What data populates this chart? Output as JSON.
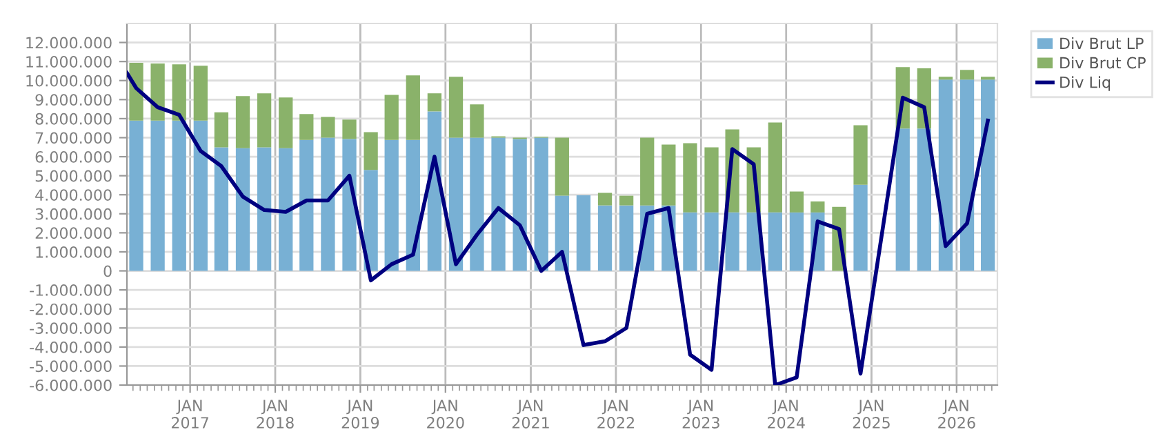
{
  "chart_data": {
    "type": "bar",
    "stacked": true,
    "grid": true,
    "legend": "top right",
    "x": [
      "2016-05-15",
      "2016-08-15",
      "2016-11-15",
      "2017-02-15",
      "2017-05-15",
      "2017-08-15",
      "2017-11-15",
      "2018-02-15",
      "2018-05-15",
      "2018-08-15",
      "2018-11-15",
      "2019-02-15",
      "2019-05-15",
      "2019-08-15",
      "2019-11-15",
      "2020-02-15",
      "2020-05-15",
      "2020-08-15",
      "2020-11-15",
      "2021-02-15",
      "2021-05-15",
      "2021-08-15",
      "2021-11-15",
      "2022-02-15",
      "2022-05-15",
      "2022-08-15",
      "2022-11-15",
      "2023-02-15",
      "2023-05-15",
      "2023-08-15",
      "2023-11-15",
      "2024-02-15",
      "2024-05-15",
      "2024-08-15",
      "2024-11-15",
      "2025-02-15",
      "2025-05-15",
      "2025-08-15",
      "2025-11-15",
      "2026-02-15",
      "2026-05-15"
    ],
    "series": [
      {
        "name": "Div Brut LP",
        "color": "#78b0d4",
        "values": [
          7900000,
          7900000,
          7900000,
          7900000,
          6490000,
          6450000,
          6490000,
          6450000,
          6880000,
          7000000,
          6930000,
          5300000,
          6880000,
          6880000,
          8380000,
          7000000,
          7000000,
          7000000,
          6930000,
          7000000,
          3950000,
          3970000,
          3440000,
          3440000,
          3440000,
          3440000,
          3070000,
          3070000,
          3070000,
          3070000,
          3070000,
          3070000,
          3070000,
          0,
          4520000,
          null,
          7480000,
          7480000,
          10050000,
          10050000,
          10050000
        ]
      },
      {
        "name": "Div Brut CP",
        "color": "#8ab26a",
        "values": [
          3030000,
          3000000,
          2950000,
          2880000,
          1840000,
          2730000,
          2840000,
          2660000,
          1360000,
          1090000,
          1020000,
          1990000,
          2370000,
          3390000,
          950000,
          3200000,
          1750000,
          70000,
          70000,
          50000,
          3050000,
          0,
          660000,
          510000,
          3560000,
          3200000,
          3640000,
          3420000,
          4360000,
          3420000,
          4730000,
          1100000,
          580000,
          3360000,
          3130000,
          null,
          3230000,
          3160000,
          150000,
          510000,
          150000
        ]
      },
      {
        "name": "Div Liq",
        "type": "line",
        "color": "#000080",
        "x": [
          "2016-04-05",
          "2016-05-15",
          "2016-08-15",
          "2016-11-15",
          "2017-02-15",
          "2017-05-15",
          "2017-08-15",
          "2017-11-15",
          "2018-02-15",
          "2018-05-15",
          "2018-08-15",
          "2018-11-15",
          "2019-02-15",
          "2019-05-15",
          "2019-08-15",
          "2019-11-15",
          "2020-02-15",
          "2020-05-15",
          "2020-08-15",
          "2020-11-15",
          "2021-02-15",
          "2021-05-15",
          "2021-08-15",
          "2021-11-15",
          "2022-02-15",
          "2022-05-15",
          "2022-08-15",
          "2022-11-15",
          "2023-02-15",
          "2023-05-15",
          "2023-08-15",
          "2023-11-15",
          "2024-02-15",
          "2024-05-15",
          "2024-08-15",
          "2024-11-15",
          "2025-05-15",
          "2025-08-15",
          "2025-11-15",
          "2026-02-15",
          "2026-05-15"
        ],
        "values": [
          10400000,
          9600000,
          8600000,
          8200000,
          6300000,
          5500000,
          3900000,
          3200000,
          3100000,
          3700000,
          3700000,
          5000000,
          -500000,
          350000,
          850000,
          6000000,
          350000,
          1900000,
          3300000,
          2400000,
          0,
          1000000,
          -3900000,
          -3700000,
          -3000000,
          3000000,
          3300000,
          -4400000,
          -5200000,
          6400000,
          5600000,
          -6000000,
          -5600000,
          2600000,
          2200000,
          -5400000,
          9100000,
          8600000,
          1300000,
          2500000,
          7900000
        ]
      }
    ],
    "xlim": [
      "2016-04-05",
      "2026-06-25"
    ],
    "xticks": [
      {
        "value": "2017-01-01",
        "label": "JAN\n2017"
      },
      {
        "value": "2018-01-01",
        "label": "JAN\n2018"
      },
      {
        "value": "2019-01-01",
        "label": "JAN\n2019"
      },
      {
        "value": "2020-01-01",
        "label": "JAN\n2020"
      },
      {
        "value": "2021-01-01",
        "label": "JAN\n2021"
      },
      {
        "value": "2022-01-01",
        "label": "JAN\n2022"
      },
      {
        "value": "2023-01-01",
        "label": "JAN\n2023"
      },
      {
        "value": "2024-01-01",
        "label": "JAN\n2024"
      },
      {
        "value": "2025-01-01",
        "label": "JAN\n2025"
      },
      {
        "value": "2026-01-01",
        "label": "JAN\n2026"
      }
    ],
    "ylim": [
      -6000000,
      13000000
    ],
    "yticks": [
      {
        "value": -6000000,
        "label": "-6.000.000"
      },
      {
        "value": -5000000,
        "label": "-5.000.000"
      },
      {
        "value": -4000000,
        "label": "-4.000.000"
      },
      {
        "value": -3000000,
        "label": "-3.000.000"
      },
      {
        "value": -2000000,
        "label": "-2.000.000"
      },
      {
        "value": -1000000,
        "label": "-1.000.000"
      },
      {
        "value": 0,
        "label": "0"
      },
      {
        "value": 1000000,
        "label": "1.000.000"
      },
      {
        "value": 2000000,
        "label": "2.000.000"
      },
      {
        "value": 3000000,
        "label": "3.000.000"
      },
      {
        "value": 4000000,
        "label": "4.000.000"
      },
      {
        "value": 5000000,
        "label": "5.000.000"
      },
      {
        "value": 6000000,
        "label": "6.000.000"
      },
      {
        "value": 7000000,
        "label": "7.000.000"
      },
      {
        "value": 8000000,
        "label": "8.000.000"
      },
      {
        "value": 9000000,
        "label": "9.000.000"
      },
      {
        "value": 10000000,
        "label": "10.000.000"
      },
      {
        "value": 11000000,
        "label": "11.000.000"
      },
      {
        "value": 12000000,
        "label": "12.000.000"
      }
    ]
  }
}
